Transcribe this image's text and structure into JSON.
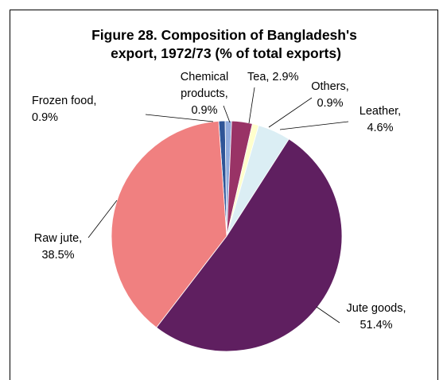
{
  "chart_data": {
    "type": "pie",
    "title": [
      "Figure 28. Composition of Bangladesh's",
      "export, 1972/73 (% of total exports)"
    ],
    "slices": [
      {
        "name": "Frozen food",
        "value": 0.9,
        "label": [
          "Frozen food,",
          "0.9%"
        ],
        "color": "#2f5597"
      },
      {
        "name": "Chemical products",
        "value": 0.9,
        "label": [
          "Chemical",
          "products,",
          "0.9%"
        ],
        "color": "#8faadc"
      },
      {
        "name": "Tea",
        "value": 2.9,
        "label": [
          "Tea, 2.9%"
        ],
        "color": "#993366"
      },
      {
        "name": "Others",
        "value": 0.9,
        "label": [
          "Others,",
          "0.9%"
        ],
        "color": "#ffffcc"
      },
      {
        "name": "Leather",
        "value": 4.6,
        "label": [
          "Leather,",
          "4.6%"
        ],
        "color": "#dbeef4"
      },
      {
        "name": "Jute goods",
        "value": 51.4,
        "label": [
          "Jute goods,",
          "51.4%"
        ],
        "color": "#5f1f60"
      },
      {
        "name": "Raw jute",
        "value": 38.5,
        "label": [
          "Raw jute,",
          "38.5%"
        ],
        "color": "#f08080"
      }
    ]
  }
}
